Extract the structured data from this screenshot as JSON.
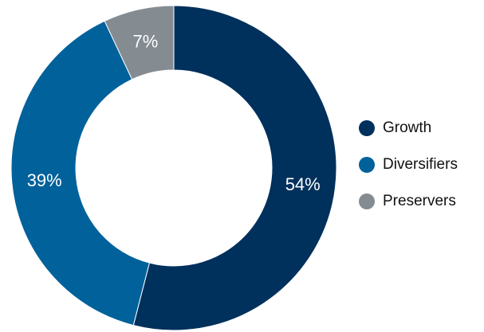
{
  "chart_data": {
    "type": "pie",
    "donut": true,
    "title": "",
    "categories": [
      "Growth",
      "Diversifiers",
      "Preservers"
    ],
    "values": [
      54,
      39,
      7
    ],
    "value_labels": [
      "54%",
      "39%",
      "7%"
    ],
    "colors": [
      "#00305c",
      "#00619b",
      "#848c92"
    ],
    "legend_position": "right",
    "start_angle": "12 o'clock",
    "direction": "clockwise"
  }
}
